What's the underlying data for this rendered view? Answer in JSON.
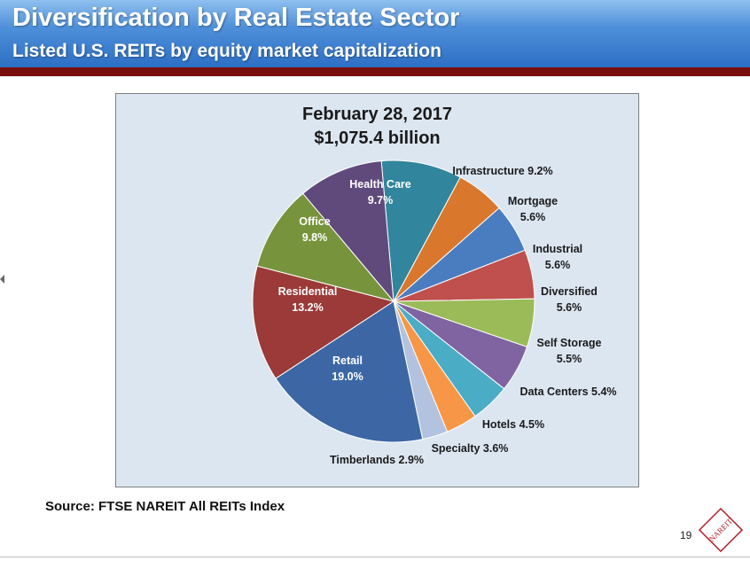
{
  "header": {
    "title": "Diversification by Real Estate Sector",
    "subtitle": "Listed U.S. REITs by equity market capitalization"
  },
  "chart_data": {
    "type": "pie",
    "title": "February 28, 2017",
    "subtitle": "$1,075.4 billion",
    "start_angle_deg": -5,
    "direction": "clockwise",
    "slices": [
      {
        "name": "Infrastructure",
        "value": 9.2,
        "label": "9.2%",
        "color": "#31859c"
      },
      {
        "name": "Mortgage",
        "value": 5.6,
        "label": "5.6%",
        "color": "#d9782d"
      },
      {
        "name": "Industrial",
        "value": 5.6,
        "label": "5.6%",
        "color": "#4a7dc0"
      },
      {
        "name": "Diversified",
        "value": 5.6,
        "label": "5.6%",
        "color": "#c0504d"
      },
      {
        "name": "Self Storage",
        "value": 5.5,
        "label": "5.5%",
        "color": "#9bbb59"
      },
      {
        "name": "Data Centers",
        "value": 5.4,
        "label": "5.4%",
        "color": "#8064a2"
      },
      {
        "name": "Hotels",
        "value": 4.5,
        "label": "4.5%",
        "color": "#4bacc6"
      },
      {
        "name": "Specialty",
        "value": 3.6,
        "label": "3.6%",
        "color": "#f79646"
      },
      {
        "name": "Timberlands",
        "value": 2.9,
        "label": "2.9%",
        "color": "#b3c2de"
      },
      {
        "name": "Retail",
        "value": 19.0,
        "label": "19.0%",
        "color": "#3c67a4"
      },
      {
        "name": "Residential",
        "value": 13.2,
        "label": "13.2%",
        "color": "#9b3a38"
      },
      {
        "name": "Office",
        "value": 9.8,
        "label": "9.8%",
        "color": "#77933c"
      },
      {
        "name": "Health Care",
        "value": 9.7,
        "label": "9.7%",
        "color": "#604a7b"
      }
    ]
  },
  "source": "Source: FTSE NAREIT All REITs Index",
  "page_number": "19",
  "logo": {
    "text": "NAREIT",
    "icon": "nareit-logo"
  }
}
